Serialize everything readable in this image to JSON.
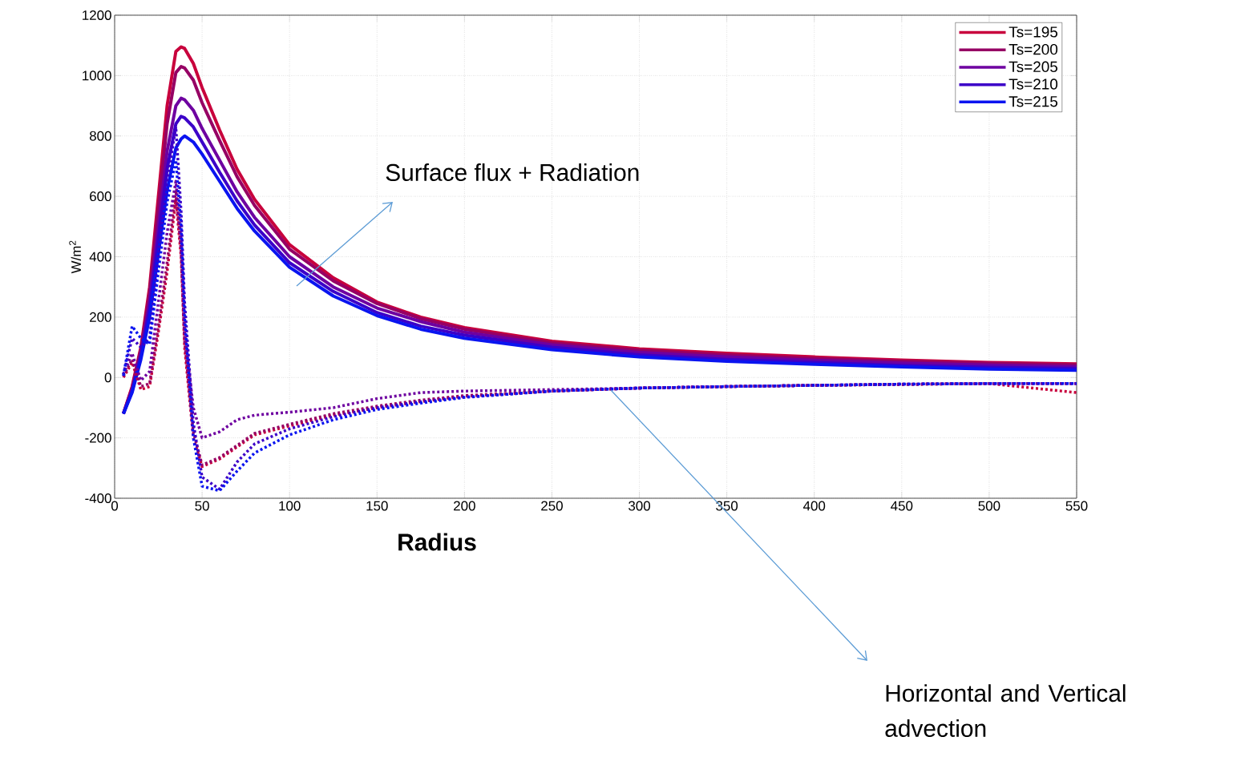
{
  "chart_data": {
    "type": "line",
    "xlabel": "Radius",
    "ylabel": "W/m$^{2}$",
    "x": [
      5,
      10,
      15,
      20,
      25,
      30,
      35,
      38,
      40,
      45,
      50,
      60,
      70,
      80,
      100,
      125,
      150,
      175,
      200,
      250,
      300,
      350,
      400,
      450,
      500,
      550
    ],
    "series": [
      {
        "name": "Ts=195",
        "color": "#c8003c",
        "values": [
          -120,
          -30,
          100,
          300,
          600,
          900,
          1080,
          1095,
          1090,
          1040,
          960,
          820,
          690,
          590,
          440,
          330,
          250,
          200,
          165,
          120,
          95,
          80,
          68,
          58,
          50,
          45
        ]
      },
      {
        "name": "Ts=200",
        "color": "#960064",
        "values": [
          -120,
          -35,
          90,
          280,
          560,
          840,
          1010,
          1030,
          1025,
          985,
          910,
          785,
          665,
          570,
          425,
          320,
          245,
          195,
          160,
          115,
          90,
          75,
          63,
          54,
          47,
          42
        ]
      },
      {
        "name": "Ts=205",
        "color": "#6e00a0",
        "values": [
          -120,
          -40,
          80,
          250,
          500,
          750,
          900,
          925,
          920,
          885,
          825,
          720,
          615,
          530,
          400,
          300,
          230,
          185,
          150,
          108,
          83,
          68,
          57,
          48,
          41,
          36
        ]
      },
      {
        "name": "Ts=210",
        "color": "#3c00c8",
        "values": [
          -120,
          -45,
          70,
          230,
          460,
          690,
          840,
          865,
          860,
          830,
          780,
          680,
          585,
          505,
          380,
          285,
          215,
          170,
          140,
          100,
          75,
          60,
          50,
          40,
          34,
          30
        ]
      },
      {
        "name": "Ts=215",
        "color": "#0a14f0",
        "values": [
          -120,
          -50,
          60,
          200,
          410,
          620,
          760,
          790,
          800,
          780,
          740,
          650,
          560,
          485,
          365,
          270,
          205,
          160,
          130,
          92,
          68,
          54,
          44,
          35,
          28,
          24
        ]
      },
      {
        "color": "#c8003c",
        "line_style": "dashed",
        "values": [
          0,
          50,
          -40,
          -30,
          150,
          350,
          590,
          400,
          100,
          -200,
          -295,
          -270,
          -230,
          -190,
          -160,
          -125,
          -100,
          -80,
          -62,
          -45,
          -35,
          -30,
          -26,
          -23,
          -20,
          -50
        ]
      },
      {
        "color": "#960064",
        "line_style": "dashed",
        "values": [
          5,
          60,
          -30,
          -20,
          170,
          380,
          620,
          420,
          120,
          -180,
          -290,
          -265,
          -225,
          -185,
          -155,
          -120,
          -95,
          -75,
          -60,
          -45,
          -35,
          -30,
          -26,
          -23,
          -20,
          -20
        ]
      },
      {
        "color": "#6e00a0",
        "line_style": "dashed",
        "values": [
          10,
          80,
          -10,
          20,
          250,
          480,
          650,
          450,
          150,
          -100,
          -200,
          -180,
          -140,
          -125,
          -115,
          -100,
          -70,
          -50,
          -45,
          -40,
          -35,
          -30,
          -26,
          -22,
          -20,
          -20
        ]
      },
      {
        "color": "#3c00c8",
        "line_style": "dashed",
        "values": [
          10,
          130,
          100,
          130,
          400,
          650,
          830,
          550,
          250,
          -150,
          -330,
          -370,
          -280,
          -220,
          -170,
          -130,
          -100,
          -80,
          -65,
          -45,
          -35,
          -30,
          -26,
          -22,
          -20,
          -20
        ]
      },
      {
        "color": "#0a14f0",
        "line_style": "dashed",
        "values": [
          5,
          170,
          130,
          110,
          350,
          580,
          720,
          500,
          200,
          -200,
          -360,
          -375,
          -310,
          -250,
          -190,
          -140,
          -106,
          -85,
          -66,
          -45,
          -35,
          -30,
          -26,
          -22,
          -20,
          -20
        ]
      }
    ],
    "xlim": [
      0,
      550
    ],
    "ylim": [
      -400,
      1200
    ],
    "xticks": [
      0,
      50,
      100,
      150,
      200,
      250,
      300,
      350,
      400,
      450,
      500,
      550
    ],
    "yticks": [
      -400,
      -200,
      0,
      200,
      400,
      600,
      800,
      1000,
      1200
    ],
    "grid": true,
    "legend": "top right",
    "annotations": [
      "Surface flux + Radiation",
      "Horizontal and Vertical advection"
    ]
  }
}
